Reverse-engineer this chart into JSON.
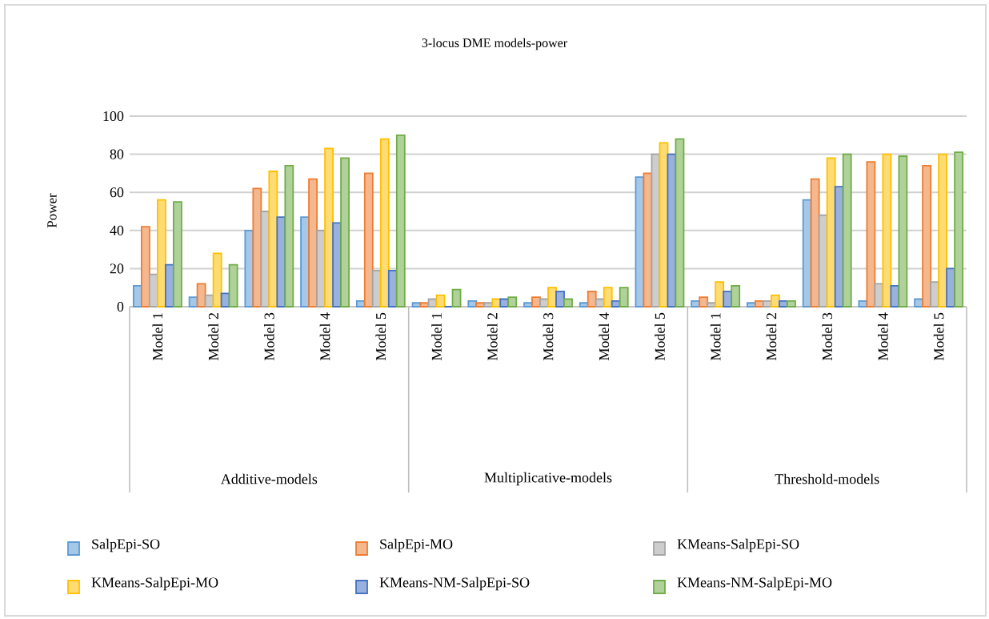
{
  "chart_data": {
    "type": "bar",
    "title": "3-locus DME models-power",
    "ylabel": "Power",
    "categories": [
      "Model 1",
      "Model 2",
      "Model 3",
      "Model 4",
      "Model 5",
      "Model 1",
      "Model 2",
      "Model 3",
      "Model 4",
      "Model 5",
      "Model 1",
      "Model 2",
      "Model 3",
      "Model 4",
      "Model 5"
    ],
    "annotations": [
      "Additive-models",
      "Multiplicative-models",
      "Threshold-models"
    ],
    "series": [
      {
        "name": "SalpEpi-SO",
        "color": "#5b9bd5",
        "values": [
          11,
          5,
          40,
          47,
          3,
          2,
          3,
          2,
          2,
          68,
          3,
          2,
          56,
          3,
          4
        ]
      },
      {
        "name": "SalpEpi-MO",
        "color": "#ed7d31",
        "values": [
          42,
          12,
          62,
          67,
          70,
          2,
          2,
          5,
          8,
          70,
          5,
          3,
          67,
          76,
          74
        ]
      },
      {
        "name": "KMeans-SalpEpi-SO",
        "color": "#a5a5a5",
        "values": [
          17,
          6,
          50,
          40,
          19,
          4,
          2,
          4,
          4,
          80,
          2,
          3,
          48,
          12,
          13
        ]
      },
      {
        "name": "KMeans-SalpEpi-MO",
        "color": "#ffc000",
        "values": [
          56,
          28,
          71,
          83,
          88,
          6,
          4,
          10,
          10,
          86,
          13,
          6,
          78,
          80,
          80
        ]
      },
      {
        "name": "KMeans-NM-SalpEpi-SO",
        "color": "#4472c4",
        "values": [
          22,
          7,
          47,
          44,
          19,
          0,
          4,
          8,
          3,
          80,
          8,
          3,
          63,
          11,
          20
        ]
      },
      {
        "name": "KMeans-NM-SalpEpi-MO",
        "color": "#70ad47",
        "values": [
          55,
          22,
          74,
          78,
          90,
          9,
          5,
          4,
          10,
          88,
          11,
          3,
          80,
          79,
          81
        ]
      }
    ],
    "ylim": [
      0,
      100
    ],
    "yticks": [
      0,
      20,
      40,
      60,
      80,
      100
    ],
    "grid": "y",
    "legend": "bottom"
  }
}
